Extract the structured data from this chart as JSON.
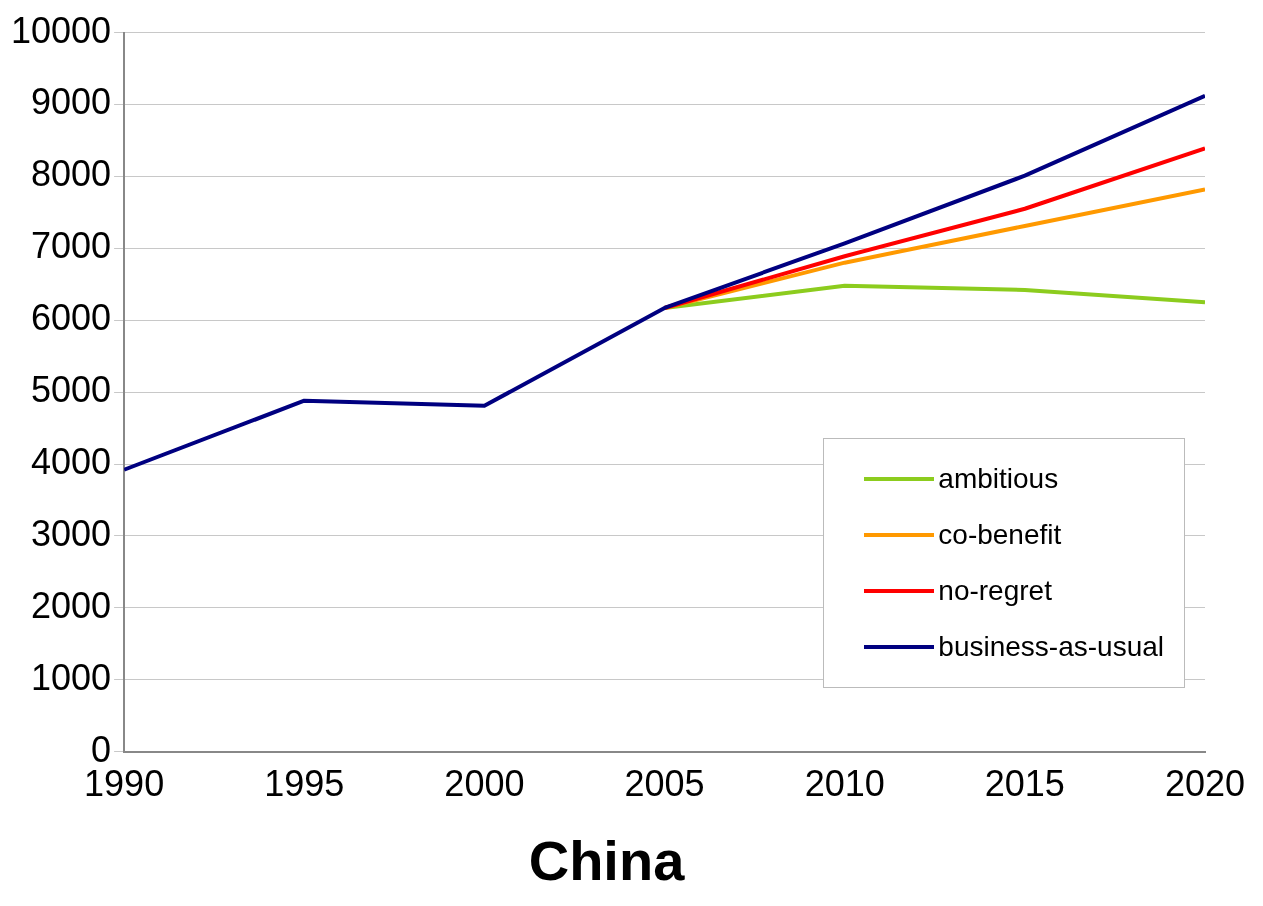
{
  "chart_data": {
    "type": "line",
    "title": "China",
    "x": [
      1990,
      1995,
      2000,
      2005,
      2010,
      2015,
      2020
    ],
    "series": [
      {
        "name": "ambitious",
        "color": "#8ccc1e",
        "values": [
          null,
          null,
          null,
          6170,
          6480,
          6420,
          6250
        ]
      },
      {
        "name": "co-benefit",
        "color": "#ff9900",
        "values": [
          null,
          null,
          null,
          6170,
          6800,
          7310,
          7820
        ]
      },
      {
        "name": "no-regret",
        "color": "#ff0000",
        "values": [
          null,
          null,
          null,
          6170,
          6890,
          7550,
          8390
        ]
      },
      {
        "name": "business-as-usual",
        "color": "#000080",
        "values": [
          3920,
          4880,
          4810,
          6170,
          7070,
          8010,
          9120
        ]
      }
    ],
    "xlim": [
      1990,
      2020
    ],
    "xticks": [
      1990,
      1995,
      2000,
      2005,
      2010,
      2015,
      2020
    ],
    "ylim": [
      0,
      10000
    ],
    "yticks": [
      0,
      1000,
      2000,
      3000,
      4000,
      5000,
      6000,
      7000,
      8000,
      9000,
      10000
    ],
    "grid": "y",
    "legend": "bottom right",
    "marker": "none",
    "line_style": "solid"
  }
}
